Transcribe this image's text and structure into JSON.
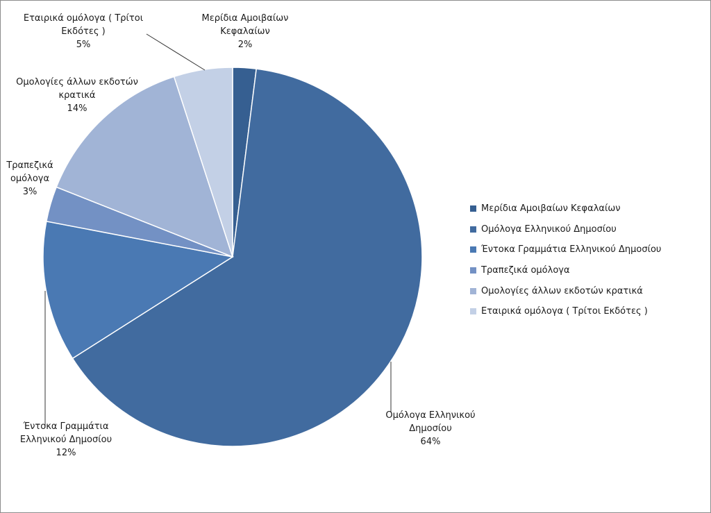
{
  "chart_data": {
    "type": "pie",
    "title": "",
    "legend_position": "right",
    "slices": [
      {
        "name": "Μερίδια Αμοιβαίων Κεφαλαίων",
        "label_lines": [
          "Μερίδια Αμοιβαίων",
          "Κεφαλαίων"
        ],
        "value": 2,
        "percent_label": "2%",
        "color": "#365f91"
      },
      {
        "name": "Ομόλογα Ελληνικού  Δημοσίου",
        "label_lines": [
          "Ομόλογα Ελληνικού",
          "Δημοσίου"
        ],
        "value": 64,
        "percent_label": "64%",
        "color": "#416b9f"
      },
      {
        "name": "Έντοκα Γραμμάτια Ελληνικού Δημοσίου",
        "label_lines": [
          "Έντοκα Γραμμάτια",
          "Ελληνικού Δημοσίου"
        ],
        "value": 12,
        "percent_label": "12%",
        "color": "#4a79b3"
      },
      {
        "name": "Τραπεζικά  ομόλογα",
        "label_lines": [
          "Τραπεζικά",
          "ομόλογα"
        ],
        "value": 3,
        "percent_label": "3%",
        "color": "#7391c4"
      },
      {
        "name": "Ομολογίες άλλων εκδοτών κρατικά",
        "label_lines": [
          "Ομολογίες άλλων εκδοτών",
          "κρατικά"
        ],
        "value": 14,
        "percent_label": "14%",
        "color": "#a1b4d6"
      },
      {
        "name": "Εταιρικά ομόλογα ( Τρίτοι Εκδότες )",
        "label_lines": [
          "Εταιρικά ομόλογα ( Τρίτοι",
          "Εκδότες )"
        ],
        "value": 5,
        "percent_label": "5%",
        "color": "#c3d0e6"
      }
    ]
  }
}
